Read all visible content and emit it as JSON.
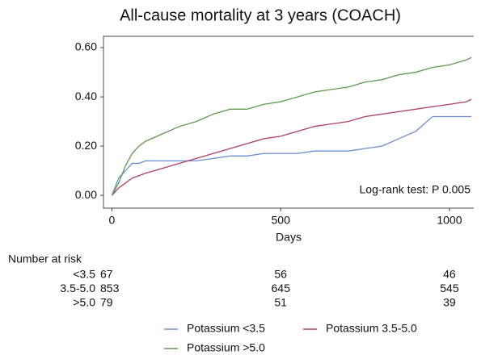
{
  "chart_data": {
    "type": "line",
    "title": "All-cause mortality at 3 years (COACH)",
    "x_label": "Days",
    "annotation": "Log-rank test: P 0.005",
    "x": [
      0,
      20,
      40,
      60,
      80,
      100,
      150,
      200,
      250,
      300,
      350,
      400,
      450,
      500,
      550,
      600,
      650,
      700,
      750,
      800,
      850,
      900,
      950,
      1000,
      1050,
      1065
    ],
    "series": [
      {
        "name": "Potassium <3.5",
        "color": "#6b8fd3",
        "values": [
          0,
          0.07,
          0.1,
          0.13,
          0.13,
          0.14,
          0.14,
          0.14,
          0.14,
          0.15,
          0.16,
          0.16,
          0.17,
          0.17,
          0.17,
          0.18,
          0.18,
          0.18,
          0.19,
          0.2,
          0.23,
          0.26,
          0.32,
          0.32,
          0.32,
          0.32
        ]
      },
      {
        "name": "Potassium 3.5-5.0",
        "color": "#b0405e",
        "values": [
          0,
          0.03,
          0.05,
          0.07,
          0.08,
          0.09,
          0.11,
          0.13,
          0.15,
          0.17,
          0.19,
          0.21,
          0.23,
          0.24,
          0.26,
          0.28,
          0.29,
          0.3,
          0.32,
          0.33,
          0.34,
          0.35,
          0.36,
          0.37,
          0.38,
          0.39
        ]
      },
      {
        "name": "Potassium >5.0",
        "color": "#5c9a4c",
        "values": [
          0,
          0.05,
          0.12,
          0.17,
          0.2,
          0.22,
          0.25,
          0.28,
          0.3,
          0.33,
          0.35,
          0.35,
          0.37,
          0.38,
          0.4,
          0.42,
          0.43,
          0.44,
          0.46,
          0.47,
          0.49,
          0.5,
          0.52,
          0.53,
          0.55,
          0.56
        ]
      }
    ],
    "xlim": [
      -25,
      1072
    ],
    "xticks": [
      0,
      500,
      1000
    ],
    "ylim": [
      -0.052,
      0.646
    ],
    "yticks": [
      {
        "value": 0,
        "label": "0.00"
      },
      {
        "value": 0.2,
        "label": "0.20"
      },
      {
        "value": 0.4,
        "label": "0.40"
      },
      {
        "value": 0.6,
        "label": "0.60"
      }
    ],
    "risk_table": {
      "title": "Number at risk",
      "rows": [
        {
          "label": "<3.5",
          "values": [
            67,
            56,
            46
          ]
        },
        {
          "label": "3.5-5.0",
          "values": [
            853,
            645,
            545
          ]
        },
        {
          "label": ">5.0",
          "values": [
            79,
            51,
            39
          ]
        }
      ]
    }
  }
}
